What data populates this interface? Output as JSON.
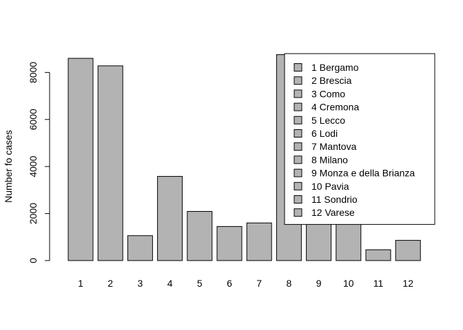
{
  "chart_data": {
    "type": "bar",
    "title": "",
    "xlabel": "",
    "ylabel": "Number fo cases",
    "ylim": [
      0,
      8800
    ],
    "yticks": [
      0,
      2000,
      4000,
      6000,
      8000
    ],
    "categories": [
      "1",
      "2",
      "3",
      "4",
      "5",
      "6",
      "7",
      "8",
      "9",
      "10",
      "11",
      "12"
    ],
    "values": [
      8600,
      8280,
      1060,
      3580,
      2090,
      1450,
      1600,
      8760,
      3300,
      2400,
      460,
      860
    ],
    "bar_color": "#b3b3b3",
    "legend_position": "top-right",
    "legend": [
      "1 Bergamo",
      "2 Brescia",
      "3 Como",
      "4 Cremona",
      "5 Lecco",
      "6 Lodi",
      "7 Mantova",
      "8 Milano",
      "9 Monza e della Brianza",
      "10 Pavia",
      "11 Sondrio",
      "12 Varese"
    ]
  }
}
